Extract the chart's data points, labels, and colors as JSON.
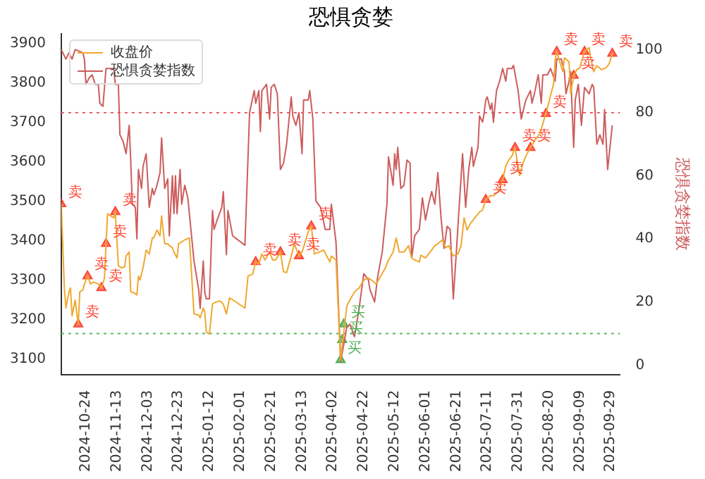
{
  "chart_data": {
    "type": "line",
    "title": "恐惧贪婪",
    "y2label": "恐惧贪婪指数",
    "legend": "top left",
    "xlim": [
      "2024-10-08",
      "2025-10-05"
    ],
    "xticks": [
      "2024-10-24",
      "2024-11-13",
      "2024-12-03",
      "2024-12-23",
      "2025-01-12",
      "2025-02-01",
      "2025-02-21",
      "2025-03-13",
      "2025-04-02",
      "2025-04-22",
      "2025-05-12",
      "2025-06-01",
      "2025-06-21",
      "2025-07-11",
      "2025-07-31",
      "2025-08-20",
      "2025-09-09",
      "2025-09-29"
    ],
    "ylim": [
      3060,
      3925
    ],
    "yticks": [
      3100,
      3200,
      3300,
      3400,
      3500,
      3600,
      3700,
      3800,
      3900
    ],
    "y2lim": [
      -3,
      105
    ],
    "y2ticks": [
      0,
      20,
      40,
      60,
      80,
      100
    ],
    "ref_lines": [
      {
        "axis": "y2",
        "value": 80,
        "color": "#e8606a",
        "line_style": "dotted"
      },
      {
        "axis": "y2",
        "value": 10,
        "color": "#5cb85c",
        "line_style": "dotted"
      }
    ],
    "series": [
      {
        "name": "收盘价",
        "type": "line",
        "color": "#f0a830",
        "x": [
          "2024-10-08",
          "2024-10-10",
          "2024-10-11",
          "2024-10-13",
          "2024-10-14",
          "2024-10-15",
          "2024-10-17",
          "2024-10-19",
          "2024-10-20",
          "2024-10-22",
          "2024-10-23",
          "2024-10-25",
          "2024-10-27",
          "2024-10-29",
          "2024-11-01",
          "2024-11-03",
          "2024-11-05",
          "2024-11-06",
          "2024-11-07",
          "2024-11-09",
          "2024-11-11",
          "2024-11-12",
          "2024-11-14",
          "2024-11-16",
          "2024-11-18",
          "2024-11-19",
          "2024-11-21",
          "2024-11-22",
          "2024-11-24",
          "2024-11-26",
          "2024-11-27",
          "2024-11-28",
          "2024-11-30",
          "2024-12-02",
          "2024-12-04",
          "2024-12-06",
          "2024-12-07",
          "2024-12-09",
          "2024-12-11",
          "2024-12-12",
          "2024-12-14",
          "2024-12-16",
          "2024-12-17",
          "2024-12-19",
          "2024-12-20",
          "2024-12-22",
          "2024-12-23",
          "2024-12-25",
          "2024-12-27",
          "2024-12-30",
          "2025-01-02",
          "2025-01-05",
          "2025-01-06",
          "2025-01-08",
          "2025-01-09",
          "2025-01-10",
          "2025-01-12",
          "2025-01-14",
          "2025-01-16",
          "2025-01-19",
          "2025-01-21",
          "2025-01-23",
          "2025-01-25",
          "2025-02-04",
          "2025-02-06",
          "2025-02-09",
          "2025-02-11",
          "2025-02-13",
          "2025-02-15",
          "2025-02-17",
          "2025-02-20",
          "2025-02-22",
          "2025-02-24",
          "2025-02-27",
          "2025-03-01",
          "2025-03-03",
          "2025-03-06",
          "2025-03-08",
          "2025-03-11",
          "2025-03-13",
          "2025-03-17",
          "2025-03-19",
          "2025-03-21",
          "2025-03-24",
          "2025-03-27",
          "2025-03-31",
          "2025-04-01",
          "2025-04-04",
          "2025-04-07",
          "2025-04-11",
          "2025-04-13",
          "2025-04-16",
          "2025-04-19",
          "2025-04-22",
          "2025-04-25",
          "2025-04-27",
          "2025-04-30",
          "2025-05-03",
          "2025-05-06",
          "2025-05-08",
          "2025-05-11",
          "2025-05-13",
          "2025-05-15",
          "2025-05-18",
          "2025-05-21",
          "2025-05-23",
          "2025-05-25",
          "2025-05-28",
          "2025-05-29",
          "2025-06-01",
          "2025-06-04",
          "2025-06-07",
          "2025-06-09",
          "2025-06-12",
          "2025-06-14",
          "2025-06-16",
          "2025-06-19",
          "2025-06-22",
          "2025-06-24",
          "2025-06-26",
          "2025-06-28",
          "2025-06-30",
          "2025-07-03",
          "2025-07-06",
          "2025-07-08",
          "2025-07-10",
          "2025-07-13",
          "2025-07-15",
          "2025-07-18",
          "2025-07-21",
          "2025-07-23",
          "2025-07-25",
          "2025-07-27",
          "2025-07-29",
          "2025-08-01",
          "2025-08-03",
          "2025-08-05",
          "2025-08-08",
          "2025-08-11",
          "2025-08-14",
          "2025-08-16",
          "2025-08-18",
          "2025-08-19",
          "2025-08-21",
          "2025-08-23",
          "2025-08-24",
          "2025-08-25",
          "2025-08-27",
          "2025-08-29",
          "2025-08-30",
          "2025-09-02",
          "2025-09-03",
          "2025-09-05",
          "2025-09-07",
          "2025-09-09",
          "2025-09-12",
          "2025-09-15",
          "2025-09-16",
          "2025-09-18",
          "2025-09-20",
          "2025-09-23",
          "2025-09-26",
          "2025-09-28",
          "2025-09-30"
        ],
        "values": [
          3493,
          3280,
          3229,
          3270,
          3280,
          3209,
          3249,
          3188,
          3270,
          3275,
          3290,
          3310,
          3290,
          3295,
          3290,
          3280,
          3305,
          3392,
          3468,
          3463,
          3458,
          3473,
          3336,
          3331,
          3333,
          3361,
          3371,
          3270,
          3268,
          3262,
          3310,
          3300,
          3331,
          3376,
          3366,
          3407,
          3407,
          3427,
          3412,
          3463,
          3392,
          3392,
          3387,
          3382,
          3371,
          3356,
          3392,
          3397,
          3402,
          3407,
          3214,
          3211,
          3204,
          3229,
          3219,
          3168,
          3163,
          3239,
          3244,
          3247,
          3239,
          3214,
          3255,
          3229,
          3310,
          3315,
          3346,
          3341,
          3366,
          3351,
          3371,
          3351,
          3351,
          3371,
          3321,
          3319,
          3361,
          3392,
          3361,
          3371,
          3422,
          3437,
          3366,
          3371,
          3376,
          3346,
          3361,
          3351,
          3097,
          3234,
          3249,
          3270,
          3280,
          3300,
          3305,
          3300,
          3290,
          3310,
          3331,
          3351,
          3371,
          3407,
          3371,
          3371,
          3387,
          3356,
          3351,
          3346,
          3363,
          3356,
          3371,
          3387,
          3392,
          3402,
          3382,
          3387,
          3361,
          3366,
          3387,
          3458,
          3427,
          3443,
          3458,
          3473,
          3478,
          3504,
          3514,
          3514,
          3524,
          3554,
          3590,
          3605,
          3615,
          3636,
          3565,
          3595,
          3615,
          3636,
          3656,
          3671,
          3697,
          3722,
          3737,
          3768,
          3798,
          3859,
          3880,
          3854,
          3829,
          3864,
          3854,
          3773,
          3819,
          3834,
          3839,
          3880,
          3890,
          3864,
          3829,
          3844,
          3834,
          3839,
          3849,
          3875
        ]
      },
      {
        "name": "恐惧贪婪指数",
        "type": "line",
        "axis": "y2",
        "color": "#cd5c5c",
        "x": [
          "2024-10-08",
          "2024-10-11",
          "2024-10-13",
          "2024-10-15",
          "2024-10-17",
          "2024-10-22",
          "2024-10-23",
          "2024-10-24",
          "2024-10-26",
          "2024-10-28",
          "2024-10-30",
          "2024-11-01",
          "2024-11-02",
          "2024-11-04",
          "2024-11-06",
          "2024-11-09",
          "2024-11-11",
          "2024-11-12",
          "2024-11-14",
          "2024-11-15",
          "2024-11-17",
          "2024-11-19",
          "2024-11-21",
          "2024-11-22",
          "2024-11-23",
          "2024-11-25",
          "2024-11-26",
          "2024-11-27",
          "2024-11-29",
          "2024-11-30",
          "2024-12-02",
          "2024-12-04",
          "2024-12-06",
          "2024-12-07",
          "2024-12-09",
          "2024-12-11",
          "2024-12-12",
          "2024-12-14",
          "2024-12-16",
          "2024-12-17",
          "2024-12-19",
          "2024-12-20",
          "2024-12-21",
          "2024-12-22",
          "2024-12-24",
          "2024-12-25",
          "2024-12-27",
          "2024-12-29",
          "2025-01-02",
          "2025-01-05",
          "2025-01-06",
          "2025-01-08",
          "2025-01-09",
          "2025-01-10",
          "2025-01-12",
          "2025-01-14",
          "2025-01-15",
          "2025-01-17",
          "2025-01-20",
          "2025-01-21",
          "2025-01-23",
          "2025-01-24",
          "2025-01-27",
          "2025-02-04",
          "2025-02-07",
          "2025-02-10",
          "2025-02-11",
          "2025-02-13",
          "2025-02-14",
          "2025-02-15",
          "2025-02-18",
          "2025-02-20",
          "2025-02-21",
          "2025-02-23",
          "2025-02-25",
          "2025-02-27",
          "2025-03-01",
          "2025-03-03",
          "2025-03-06",
          "2025-03-07",
          "2025-03-09",
          "2025-03-11",
          "2025-03-13",
          "2025-03-14",
          "2025-03-17",
          "2025-03-18",
          "2025-03-20",
          "2025-03-22",
          "2025-03-25",
          "2025-03-28",
          "2025-03-31",
          "2025-04-01",
          "2025-04-04",
          "2025-04-07",
          "2025-04-11",
          "2025-04-13",
          "2025-04-16",
          "2025-04-19",
          "2025-04-22",
          "2025-04-25",
          "2025-04-26",
          "2025-04-29",
          "2025-05-01",
          "2025-05-04",
          "2025-05-07",
          "2025-05-08",
          "2025-05-11",
          "2025-05-12",
          "2025-05-13",
          "2025-05-14",
          "2025-05-16",
          "2025-05-18",
          "2025-05-20",
          "2025-05-22",
          "2025-05-23",
          "2025-05-25",
          "2025-05-28",
          "2025-05-30",
          "2025-06-01",
          "2025-06-03",
          "2025-06-05",
          "2025-06-07",
          "2025-06-09",
          "2025-06-11",
          "2025-06-13",
          "2025-06-15",
          "2025-06-17",
          "2025-06-19",
          "2025-06-21",
          "2025-06-22",
          "2025-06-25",
          "2025-06-27",
          "2025-06-29",
          "2025-07-01",
          "2025-07-02",
          "2025-07-05",
          "2025-07-06",
          "2025-07-08",
          "2025-07-09",
          "2025-07-10",
          "2025-07-11",
          "2025-07-13",
          "2025-07-14",
          "2025-07-15",
          "2025-07-17",
          "2025-07-19",
          "2025-07-21",
          "2025-07-23",
          "2025-07-24",
          "2025-07-27",
          "2025-07-28",
          "2025-07-31",
          "2025-08-02",
          "2025-08-03",
          "2025-08-05",
          "2025-08-08",
          "2025-08-09",
          "2025-08-11",
          "2025-08-13",
          "2025-08-15",
          "2025-08-16",
          "2025-08-19",
          "2025-08-21",
          "2025-08-24",
          "2025-08-25",
          "2025-08-28",
          "2025-08-30",
          "2025-08-31",
          "2025-09-02",
          "2025-09-03",
          "2025-09-05",
          "2025-09-06",
          "2025-09-08",
          "2025-09-10",
          "2025-09-12",
          "2025-09-15",
          "2025-09-17",
          "2025-09-18",
          "2025-09-20",
          "2025-09-22",
          "2025-09-24",
          "2025-09-25",
          "2025-09-27",
          "2025-09-30"
        ],
        "values": [
          100,
          97,
          99,
          97,
          100,
          99,
          97,
          89,
          91,
          92,
          89,
          89,
          83,
          82,
          94,
          94,
          94,
          89,
          89,
          73,
          71,
          67,
          76,
          65,
          51,
          50,
          40,
          62,
          56,
          63,
          67,
          50,
          56,
          54,
          57,
          61,
          72,
          56,
          59,
          41,
          60,
          48,
          60,
          48,
          62,
          51,
          57,
          53,
          33,
          24,
          18,
          33,
          23,
          21,
          21,
          49,
          43,
          46,
          50,
          55,
          35,
          49,
          41,
          38,
          80,
          87,
          83,
          87,
          74,
          87,
          89,
          78,
          88,
          89,
          86,
          62,
          64,
          70,
          85,
          79,
          76,
          80,
          67,
          84,
          84,
          87,
          78,
          52,
          50,
          43,
          43,
          51,
          39,
          1,
          12,
          13,
          9,
          18,
          29,
          27,
          24,
          20,
          28,
          36,
          51,
          66,
          57,
          67,
          62,
          69,
          56,
          57,
          65,
          64,
          34,
          41,
          43,
          53,
          46,
          51,
          55,
          51,
          61,
          47,
          37,
          44,
          43,
          21,
          36,
          44,
          67,
          50,
          62,
          69,
          63,
          69,
          79,
          77,
          80,
          84,
          85,
          81,
          83,
          77,
          87,
          90,
          94,
          90,
          94,
          94,
          95,
          87,
          78,
          80,
          84,
          87,
          83,
          87,
          92,
          83,
          92,
          92,
          94,
          90,
          97,
          97,
          93,
          86,
          90,
          93,
          69,
          84,
          89,
          76,
          88,
          86,
          89,
          88,
          70,
          73,
          70,
          81,
          62,
          76
        ]
      },
      {
        "type": "scatter",
        "marker": "triangle",
        "color": "#ff4433",
        "x": [
          "2024-10-08",
          "2024-10-19",
          "2024-10-25",
          "2024-11-03",
          "2024-11-06",
          "2024-11-12",
          "2025-02-11",
          "2025-02-27",
          "2025-03-11",
          "2025-03-19",
          "2025-07-10",
          "2025-07-21",
          "2025-07-29",
          "2025-08-08",
          "2025-08-18",
          "2025-08-25",
          "2025-09-05",
          "2025-09-12",
          "2025-09-30"
        ],
        "values": [
          3493,
          3188,
          3310,
          3280,
          3392,
          3473,
          3346,
          3371,
          3361,
          3437,
          3504,
          3554,
          3636,
          3636,
          3722,
          3880,
          3819,
          3880,
          3875
        ],
        "value_labels": [
          "卖",
          "卖",
          "卖",
          "卖",
          "卖",
          "卖",
          "卖",
          "卖",
          "卖",
          "卖",
          "卖",
          "卖",
          "卖",
          "卖",
          "卖",
          "卖",
          "卖",
          "卖",
          "卖"
        ]
      },
      {
        "type": "scatter",
        "marker": "triangle",
        "color": "#4caf50",
        "x": [
          "2025-04-07",
          "2025-04-08",
          "2025-04-09"
        ],
        "values": [
          3097,
          3148,
          3188
        ],
        "value_labels": [
          "买",
          "买",
          "买"
        ]
      }
    ]
  }
}
